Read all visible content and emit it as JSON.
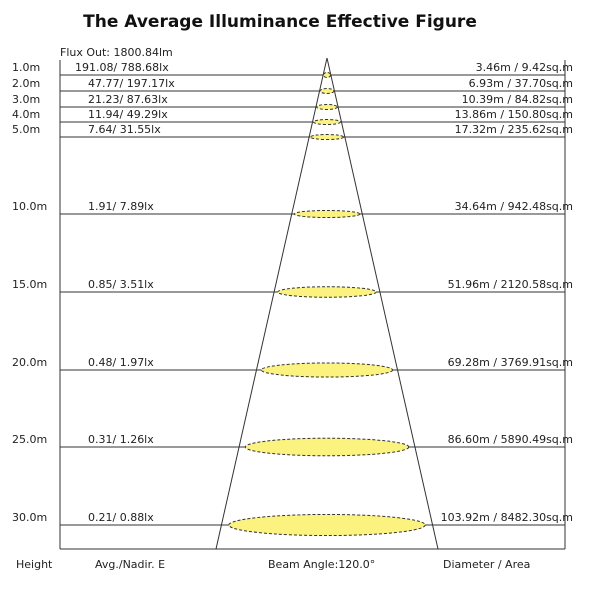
{
  "title": "The Average Illuminance Effective Figure",
  "flux": "Flux Out: 1800.84lm",
  "rows": [
    {
      "height": "1.0m",
      "illuminance": "191.08/ 788.68lx",
      "spot": "3.46m / 9.42sq.m"
    },
    {
      "height": "2.0m",
      "illuminance": "47.77/ 197.17lx",
      "spot": "6.93m / 37.70sq.m"
    },
    {
      "height": "3.0m",
      "illuminance": "21.23/ 87.63lx",
      "spot": "10.39m / 84.82sq.m"
    },
    {
      "height": "4.0m",
      "illuminance": "11.94/ 49.29lx",
      "spot": "13.86m / 150.80sq.m"
    },
    {
      "height": "5.0m",
      "illuminance": "7.64/ 31.55lx",
      "spot": "17.32m / 235.62sq.m"
    },
    {
      "height": "10.0m",
      "illuminance": "1.91/ 7.89lx",
      "spot": "34.64m / 942.48sq.m"
    },
    {
      "height": "15.0m",
      "illuminance": "0.85/ 3.51lx",
      "spot": "51.96m / 2120.58sq.m"
    },
    {
      "height": "20.0m",
      "illuminance": "0.48/ 1.97lx",
      "spot": "69.28m / 3769.91sq.m"
    },
    {
      "height": "25.0m",
      "illuminance": "0.31/ 1.26lx",
      "spot": "86.60m / 5890.49sq.m"
    },
    {
      "height": "30.0m",
      "illuminance": "0.21/ 0.88lx",
      "spot": "103.92m / 8482.30sq.m"
    }
  ],
  "footer": {
    "height": "Height",
    "illuminance": "Avg./Nadir. E",
    "beam": "Beam Angle:120.0°",
    "spot": "Diameter / Area"
  }
}
